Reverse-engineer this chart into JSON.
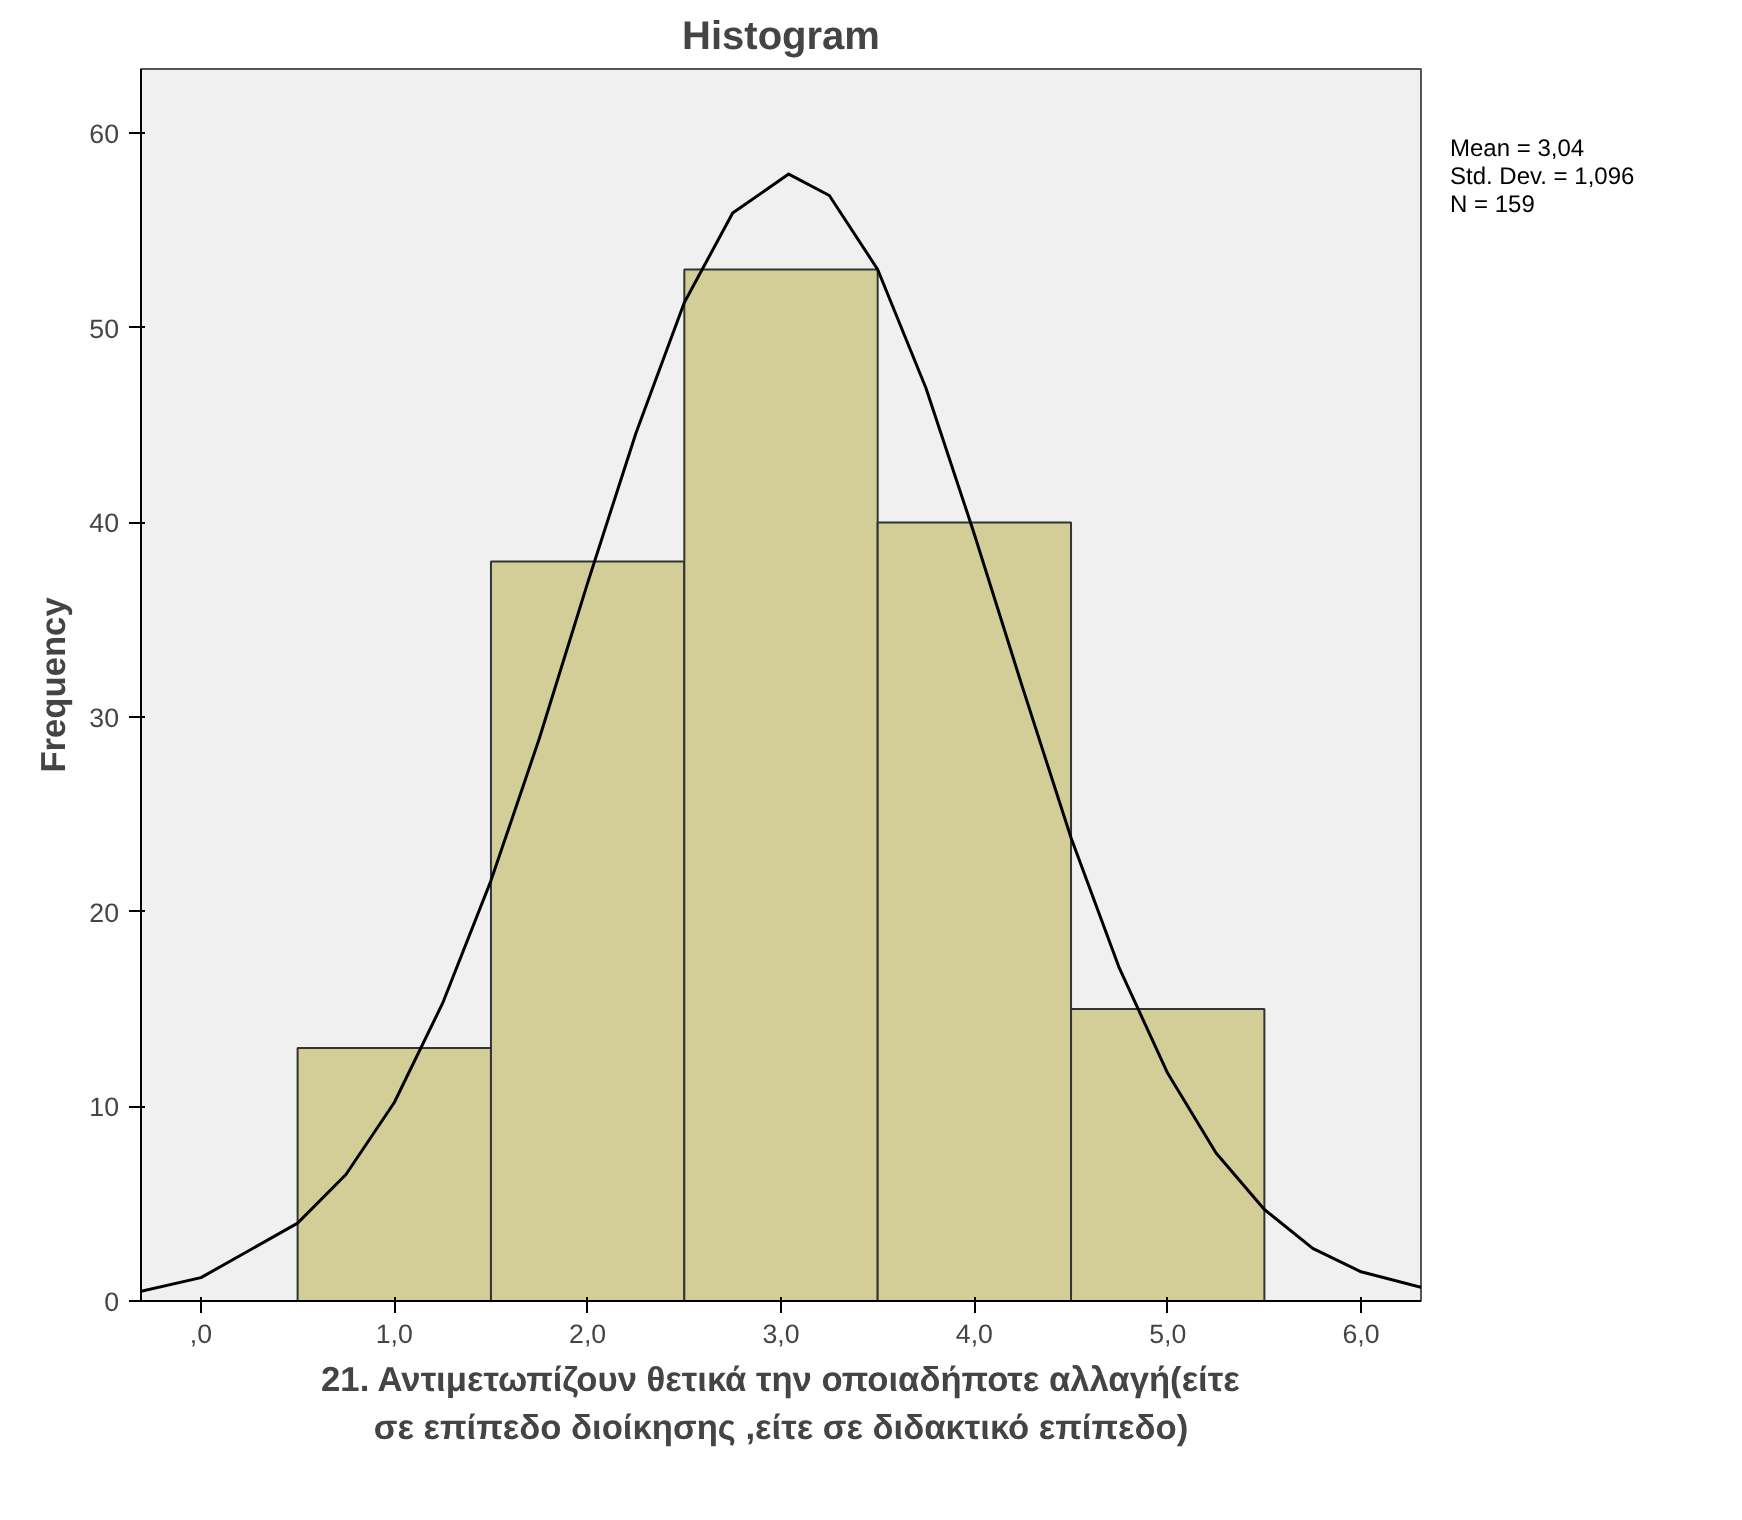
{
  "chart_data": {
    "type": "histogram",
    "title": "Histogram",
    "xlabel": "21. Αντιμετωπίζουν θετικά την οποιαδήποτε αλλαγή(είτε\nσε επίπεδο διοίκησης ,είτε σε διδακτικό επίπεδο)",
    "ylabel": "Frequency",
    "bins": [
      0.5,
      1.5,
      2.5,
      3.5,
      4.5,
      5.5
    ],
    "values": [
      13,
      38,
      53,
      40,
      15
    ],
    "color": "#d3ce97",
    "series": [
      {
        "type": "line",
        "color": "#000000",
        "x": [
          -0.31,
          0,
          0.5,
          0.75,
          1,
          1.25,
          1.5,
          1.75,
          2,
          2.25,
          2.5,
          2.75,
          3.04,
          3.25,
          3.5,
          3.75,
          4,
          4.25,
          4.5,
          4.75,
          5,
          5.25,
          5.5,
          5.75,
          6,
          6.31
        ],
        "values": [
          0.5,
          1.2,
          4,
          6.5,
          10.2,
          15.3,
          21.6,
          28.9,
          36.9,
          44.6,
          51.3,
          55.9,
          57.9,
          56.8,
          53,
          46.9,
          39.4,
          31.5,
          23.8,
          17.1,
          11.7,
          7.6,
          4.7,
          2.7,
          1.5,
          0.7
        ]
      }
    ],
    "xlim": [
      -0.31,
      6.31
    ],
    "ylim": [
      0,
      63.3
    ],
    "xticks": [
      {
        "value": 0,
        "label": ",0"
      },
      {
        "value": 1,
        "label": "1,0"
      },
      {
        "value": 2,
        "label": "2,0"
      },
      {
        "value": 3,
        "label": "3,0"
      },
      {
        "value": 4,
        "label": "4,0"
      },
      {
        "value": 5,
        "label": "5,0"
      },
      {
        "value": 6,
        "label": "6,0"
      }
    ],
    "yticks": [
      0,
      10,
      20,
      30,
      40,
      50,
      60
    ],
    "annotations": [
      "Mean = 3,04",
      "Std. Dev. = 1,096",
      "N = 159"
    ],
    "grid": false
  }
}
